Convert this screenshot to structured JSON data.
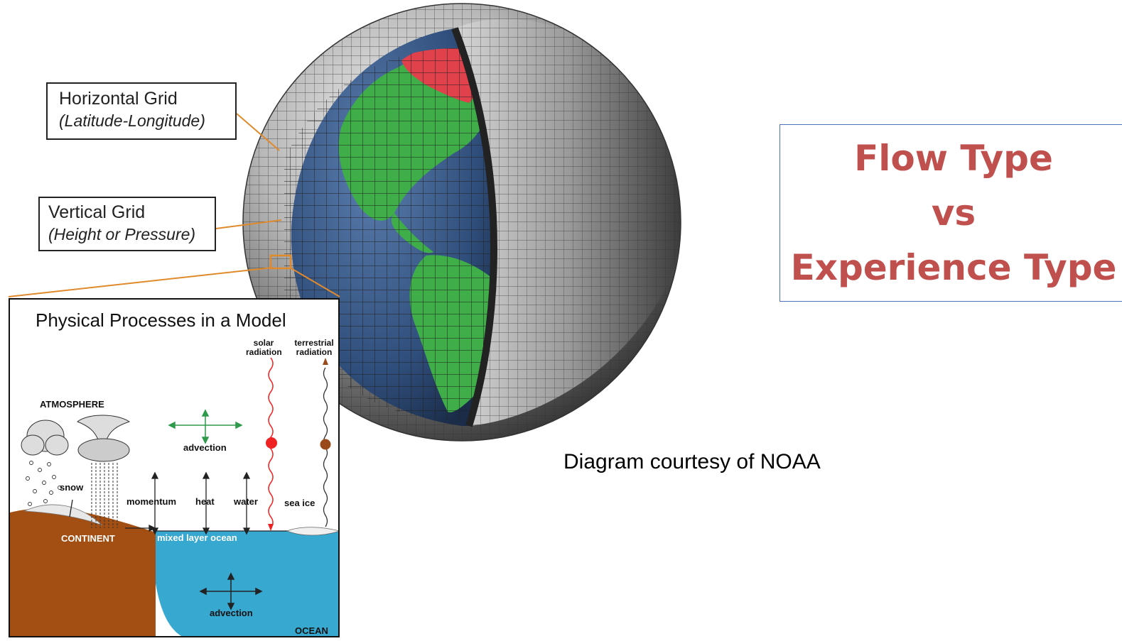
{
  "labels": {
    "horizontal_grid": {
      "line1": "Horizontal Grid",
      "line2": "(Latitude-Longitude)"
    },
    "vertical_grid": {
      "line1": "Vertical Grid",
      "line2": "(Height or Pressure)"
    }
  },
  "title": {
    "line1": "Flow Type",
    "line2": "vs",
    "line3": "Experience Type"
  },
  "credit": "Diagram courtesy of NOAA",
  "processes": {
    "title": "Physical Processes in a Model",
    "solar_radiation": [
      "solar",
      "radiation"
    ],
    "terrestrial_radiation": [
      "terrestrial",
      "radiation"
    ],
    "atmosphere": "ATMOSPHERE",
    "advection_air": "advection",
    "snow": "snow",
    "momentum": "momentum",
    "heat": "heat",
    "water": "water",
    "sea_ice": "sea ice",
    "continent": "CONTINENT",
    "mixed_layer": "mixed layer ocean",
    "advection_ocean": "advection",
    "ocean": "OCEAN"
  },
  "colors": {
    "title_text": "#c0504d",
    "title_border": "#4a72b8",
    "land": "#3fae49",
    "ice": "#e0414a",
    "ocean_globe": "#2f4d7a",
    "shell": "#8a8a8a",
    "leader_line": "#e08a2c",
    "continent": "#a34f14",
    "ocean_panel": "#37a8d0"
  }
}
